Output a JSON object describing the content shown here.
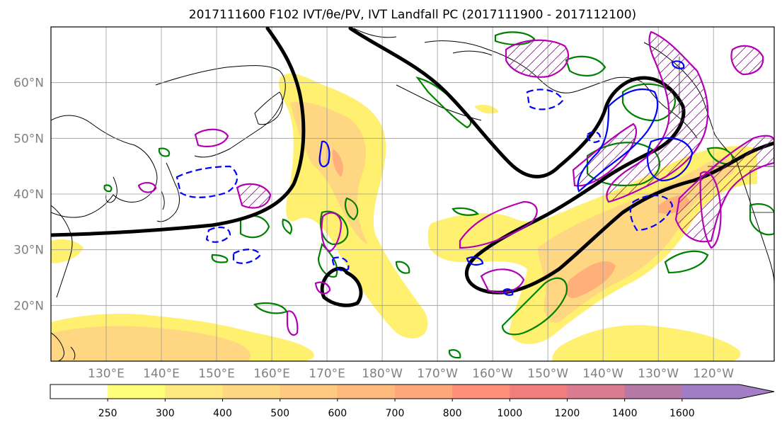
{
  "title": "2017111600 F102 IVT/θe/PV, IVT Landfall PC (2017111900 - 2017112100)",
  "map": {
    "lon_range": [
      120,
      251
    ],
    "lat_range": [
      10,
      70
    ],
    "lat_labels": [
      {
        "lat": 60,
        "label": "60°N"
      },
      {
        "lat": 50,
        "label": "50°N"
      },
      {
        "lat": 40,
        "label": "40°N"
      },
      {
        "lat": 30,
        "label": "30°N"
      },
      {
        "lat": 20,
        "label": "20°N"
      }
    ],
    "lon_labels": [
      {
        "lon": 130,
        "label": "130°E"
      },
      {
        "lon": 140,
        "label": "140°E"
      },
      {
        "lon": 150,
        "label": "150°E"
      },
      {
        "lon": 160,
        "label": "160°E"
      },
      {
        "lon": 170,
        "label": "170°E"
      },
      {
        "lon": 180,
        "label": "180°W"
      },
      {
        "lon": 190,
        "label": "170°W"
      },
      {
        "lon": 200,
        "label": "160°W"
      },
      {
        "lon": 210,
        "label": "150°W"
      },
      {
        "lon": 220,
        "label": "140°W"
      },
      {
        "lon": 230,
        "label": "130°W"
      },
      {
        "lon": 240,
        "label": "120°W"
      }
    ],
    "gridlines": true
  },
  "colorbar": {
    "labels": [
      "250",
      "300",
      "400",
      "500",
      "600",
      "700",
      "800",
      "1000",
      "1200",
      "1400",
      "1600"
    ],
    "colors": [
      "#ffffff",
      "#fffe78",
      "#ffe880",
      "#ffd782",
      "#ffc97f",
      "#ffb97c",
      "#ffa67a",
      "#ff8f78",
      "#f17d7c",
      "#d97c8f",
      "#b77aa7",
      "#a37ec7"
    ],
    "extend": "max"
  },
  "colors": {
    "ivt_light": "#fff070",
    "ivt_mid": "#ffd782",
    "ivt_high": "#ffb07a",
    "theta_e_contour": "#000000",
    "pv_contour": "#008000",
    "pc_positive": "#b400b4",
    "pc_negative": "#0000ff"
  }
}
